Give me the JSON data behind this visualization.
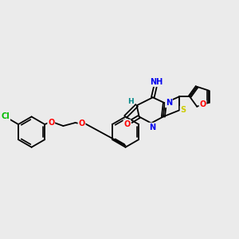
{
  "background_color": "#ebebeb",
  "bond_color": "#000000",
  "atom_colors": {
    "Cl": "#00bb00",
    "O": "#ff0000",
    "N": "#0000ee",
    "S": "#cccc00",
    "H": "#008888",
    "C": "#000000"
  },
  "figsize": [
    3.0,
    3.0
  ],
  "dpi": 100
}
